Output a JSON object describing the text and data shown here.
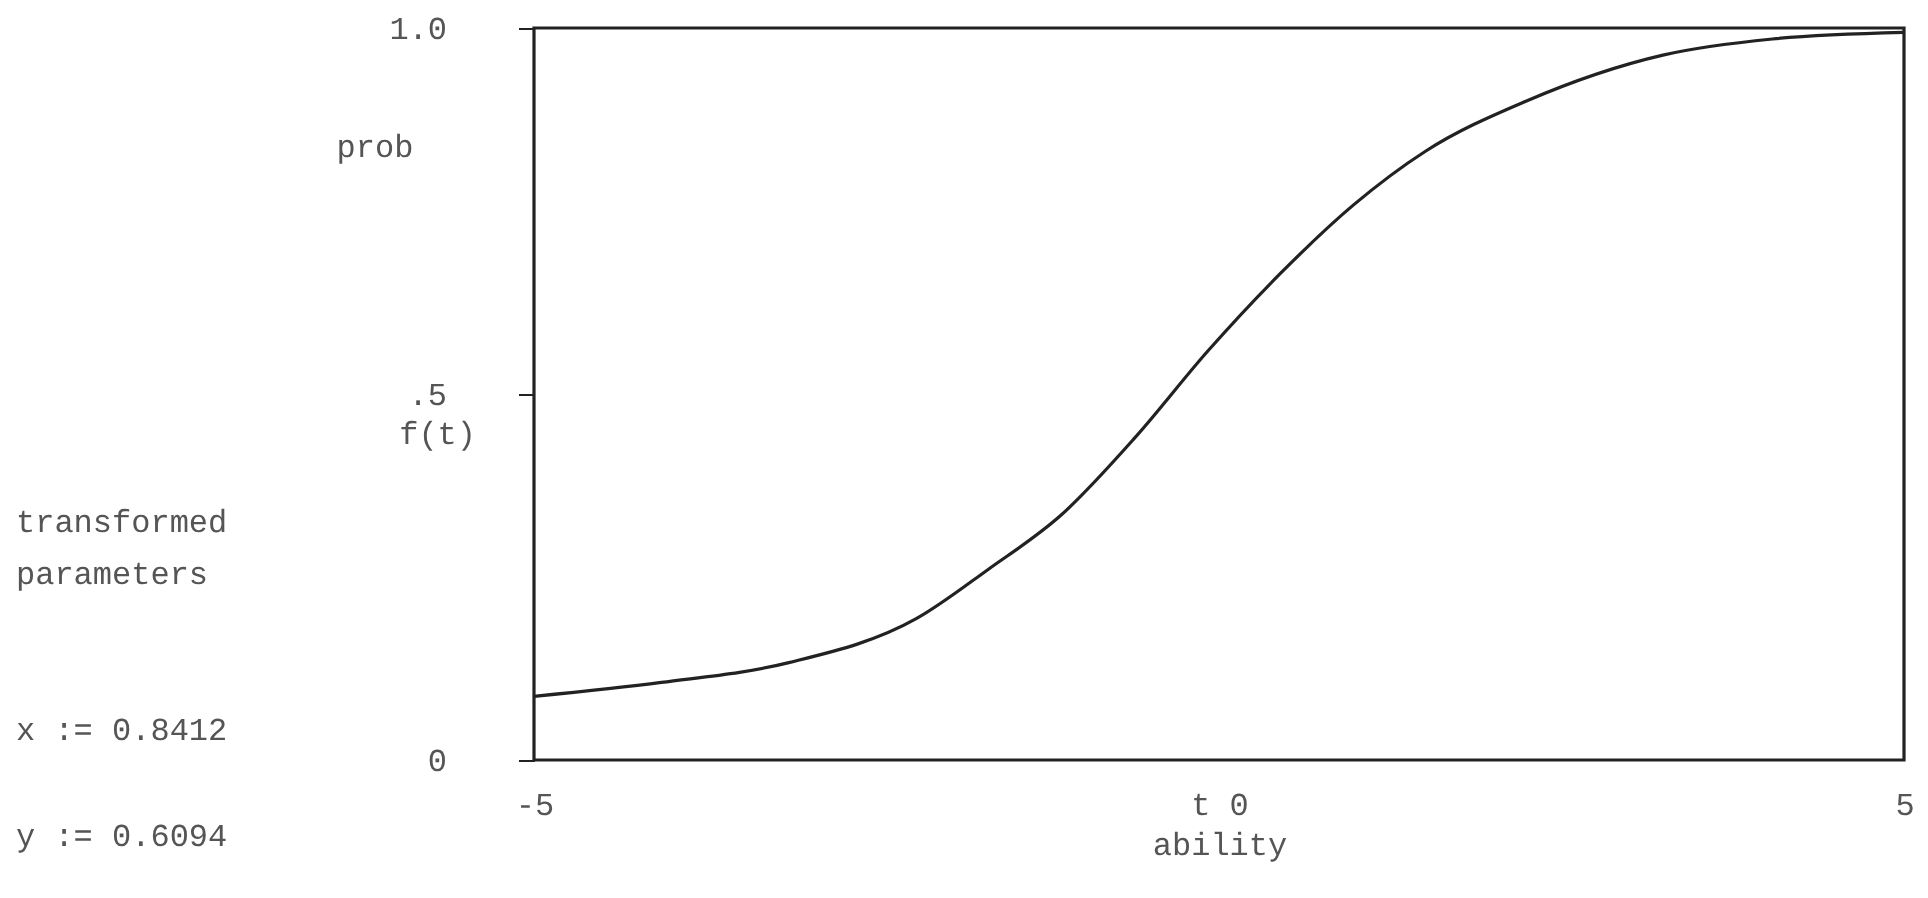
{
  "chart_data": {
    "type": "line",
    "xlabel": "ability",
    "ylabel": "prob",
    "x": [
      -5,
      -4.07,
      -3.14,
      -2.21,
      -1.68,
      -1.15,
      -0.61,
      -0.08,
      0.45,
      0.98,
      1.51,
      2.24,
      3.24,
      4.04,
      5
    ],
    "series": [
      {
        "color": "#222222",
        "values": [
          0.087,
          0.106,
          0.133,
          0.193,
          0.261,
          0.335,
          0.441,
          0.559,
          0.665,
          0.758,
          0.832,
          0.9,
          0.963,
          0.985,
          0.994
        ]
      }
    ],
    "xlim": [
      -5,
      5
    ],
    "xticks": [
      -5,
      {
        "value": 0,
        "label": "t 0"
      },
      5
    ],
    "ylim": [
      0,
      1
    ],
    "yticks": [
      0,
      {
        "value": 0.5,
        "label": ".5"
      },
      {
        "value": 1,
        "label": "1.0"
      }
    ],
    "annotations": [
      "f(t)",
      "transformed parameters",
      "x := 0.8412",
      "y := 0.6094"
    ],
    "grid": false,
    "marker": "none",
    "line_style": "solid"
  }
}
